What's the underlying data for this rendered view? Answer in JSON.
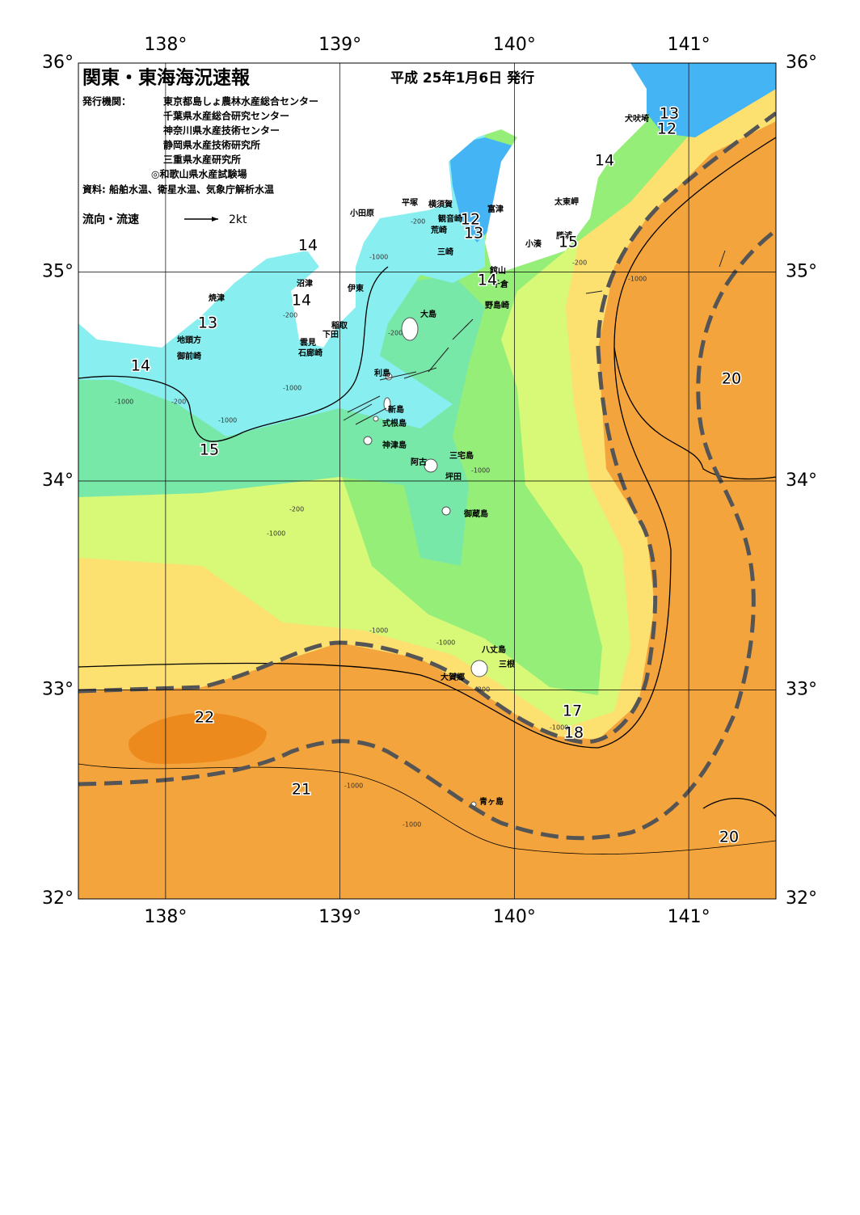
{
  "header": {
    "title": "関東・東海海況速報",
    "date": "平成 25年1月6日 発行",
    "issuer_label": "発行機関：",
    "issuers": [
      "東京都島しょ農林水産総合センター",
      "千葉県水産総合研究センター",
      "神奈川県水産技術センター",
      "静岡県水産技術研究所",
      "三重県水産研究所",
      "◎和歌山県水産試験場"
    ],
    "source": "資料: 船舶水温、衛星水温、気象庁解析水温",
    "legend_label": "流向・流速",
    "legend_speed": "2kt"
  },
  "map": {
    "lon_range": [
      137.5,
      141.5
    ],
    "lat_range": [
      32,
      36
    ],
    "lon_ticks": [
      {
        "value": 138,
        "label": "138°"
      },
      {
        "value": 139,
        "label": "139°"
      },
      {
        "value": 140,
        "label": "140°"
      },
      {
        "value": 141,
        "label": "141°"
      }
    ],
    "lat_ticks": [
      {
        "value": 32,
        "label": "32°"
      },
      {
        "value": 33,
        "label": "33°"
      },
      {
        "value": 34,
        "label": "34°"
      },
      {
        "value": 35,
        "label": "35°"
      },
      {
        "value": 36,
        "label": "36°"
      }
    ]
  },
  "place_names": [
    "小田原",
    "平塚",
    "横須賀",
    "観音崎",
    "富津",
    "荒崎",
    "三崎",
    "館山",
    "千倉",
    "野島崎",
    "犬吠埼",
    "太東岬",
    "勝浦",
    "小湊",
    "沼津",
    "焼津",
    "伊東",
    "稲取",
    "下田",
    "雲見",
    "石廊崎",
    "地頭方",
    "御前崎",
    "大島",
    "利島",
    "新島",
    "式根島",
    "神津島",
    "三宅島",
    "阿古",
    "坪田",
    "御蔵島",
    "八丈島",
    "三根",
    "大賀郷",
    "青ヶ島"
  ],
  "isotherm_labels": [
    13,
    12,
    14,
    12,
    13,
    15,
    14,
    14,
    14,
    13,
    14,
    15,
    20,
    22,
    21,
    17,
    18,
    20
  ],
  "depth_labels": [
    "-1000",
    "-200",
    "-200",
    "-200",
    "-1000",
    "-200",
    "-1000",
    "-1000",
    "-1000",
    "-200",
    "-1000",
    "-200",
    "-1000",
    "-1000",
    "-1000",
    "-200",
    "-1000",
    "-1000",
    "-1000"
  ]
}
